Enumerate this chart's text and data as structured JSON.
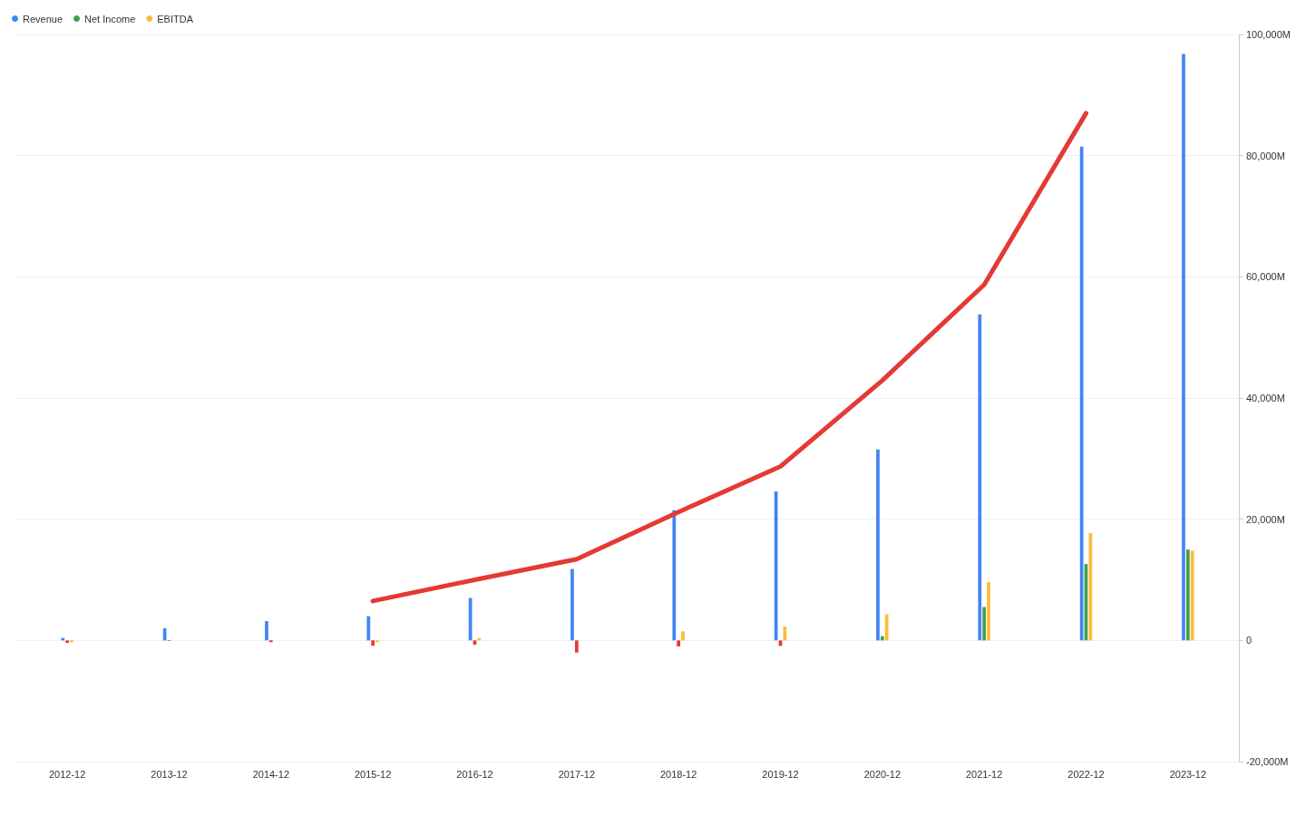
{
  "chart_data": {
    "type": "bar",
    "categories": [
      "2012-12",
      "2013-12",
      "2014-12",
      "2015-12",
      "2016-12",
      "2017-12",
      "2018-12",
      "2019-12",
      "2020-12",
      "2021-12",
      "2022-12",
      "2023-12"
    ],
    "series": [
      {
        "name": "Revenue",
        "color": "#4285f4",
        "values": [
          400,
          2000,
          3200,
          4000,
          7000,
          11800,
          21500,
          24600,
          31500,
          53800,
          81500,
          96800
        ]
      },
      {
        "name": "Net Income",
        "color": "#43a047",
        "colors": [
          "#e53935",
          "#e53935",
          "#e53935",
          "#e53935",
          "#e53935",
          "#e53935",
          "#e53935",
          "#e53935",
          "#43a047",
          "#43a047",
          "#43a047",
          "#43a047"
        ],
        "values": [
          -400,
          -100,
          -300,
          -900,
          -700,
          -2000,
          -1000,
          -900,
          700,
          5500,
          12600,
          15000
        ]
      },
      {
        "name": "EBITDA",
        "color": "#fbbc3b",
        "values": [
          -300,
          null,
          null,
          -300,
          400,
          null,
          1500,
          2300,
          4300,
          9600,
          17700,
          14800
        ]
      },
      {
        "type": "line",
        "color": "#e53935",
        "values": [
          null,
          null,
          null,
          6500,
          10000,
          13400,
          21200,
          28700,
          42900,
          58700,
          87000,
          null
        ]
      }
    ],
    "ylim": [
      -20000,
      100000
    ],
    "yticks": [
      {
        "value": -20000,
        "label": "-20,000M"
      },
      {
        "value": 0,
        "label": "0"
      },
      {
        "value": 20000,
        "label": "20,000M"
      },
      {
        "value": 40000,
        "label": "40,000M"
      },
      {
        "value": 60000,
        "label": "60,000M"
      },
      {
        "value": 80000,
        "label": "80,000M"
      },
      {
        "value": 100000,
        "label": "100,000M"
      }
    ],
    "grid": "y",
    "legend": "top left",
    "marker": "none",
    "line_style": "solid"
  }
}
